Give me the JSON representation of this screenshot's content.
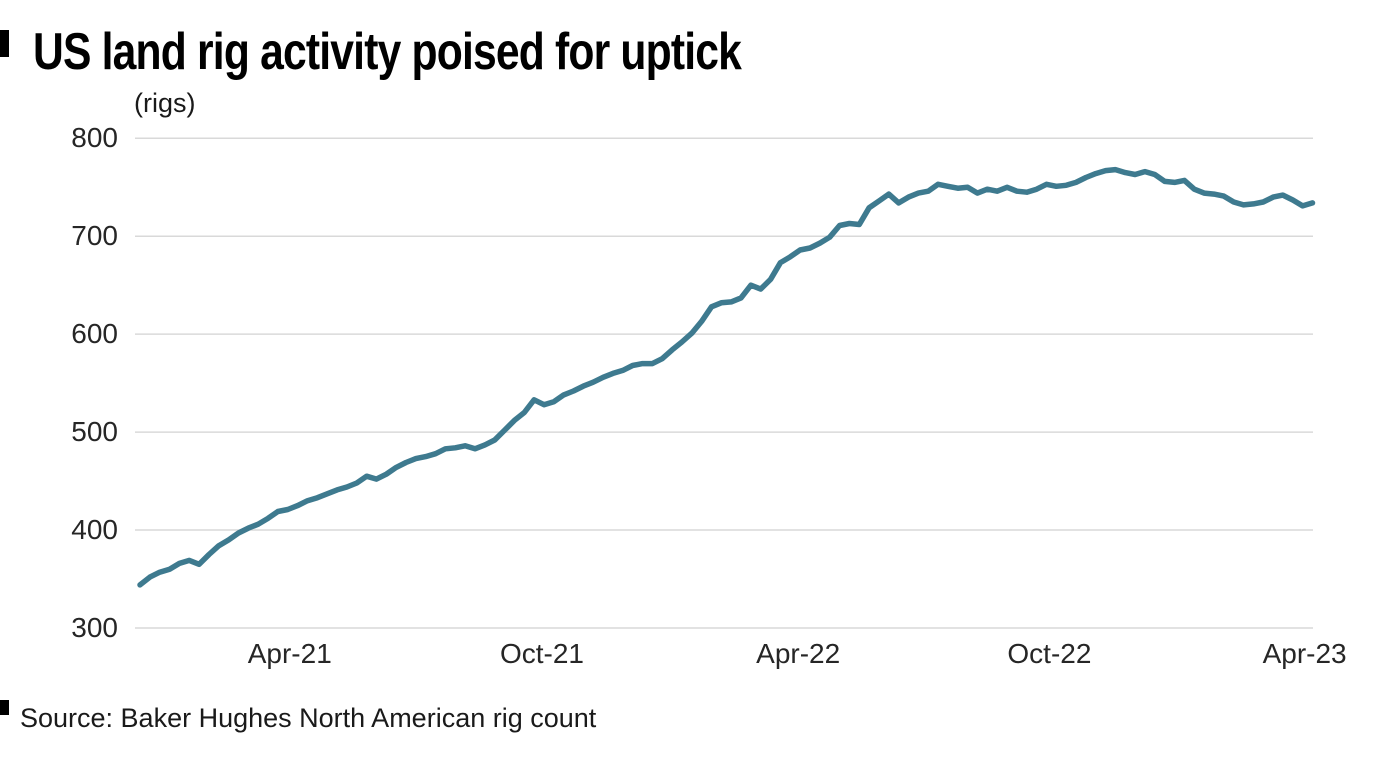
{
  "title": "US land rig activity poised for uptick",
  "units_label": "(rigs)",
  "source": "Source: Baker Hughes North American rig count",
  "colors": {
    "line": "#3e7a8f",
    "grid": "#d9d9d9",
    "title_text": "#000000",
    "axis_text": "#262626",
    "background": "#ffffff"
  },
  "chart_data": {
    "type": "line",
    "title": "US land rig activity poised for uptick",
    "ylabel": "(rigs)",
    "ylim": [
      300,
      800
    ],
    "yticks": [
      300,
      400,
      500,
      600,
      700,
      800
    ],
    "xticks": [
      {
        "label": "Apr-21",
        "week_index": 15.2
      },
      {
        "label": "Oct-21",
        "week_index": 40.8
      },
      {
        "label": "Apr-22",
        "week_index": 66.8
      },
      {
        "label": "Oct-22",
        "week_index": 92.3
      },
      {
        "label": "Apr-23",
        "week_index": 118.2
      }
    ],
    "frequency": "weekly",
    "grid": true,
    "legend": false,
    "series": [
      {
        "name": "US land rig count",
        "values": [
          344,
          352,
          357,
          360,
          366,
          369,
          365,
          375,
          384,
          390,
          397,
          402,
          406,
          412,
          419,
          421,
          425,
          430,
          433,
          437,
          441,
          444,
          448,
          455,
          452,
          457,
          464,
          469,
          473,
          475,
          478,
          483,
          484,
          486,
          483,
          487,
          492,
          502,
          512,
          520,
          533,
          528,
          531,
          538,
          542,
          547,
          551,
          556,
          560,
          563,
          568,
          570,
          570,
          575,
          584,
          592,
          601,
          613,
          628,
          632,
          633,
          637,
          650,
          646,
          656,
          673,
          679,
          686,
          688,
          693,
          699,
          711,
          713,
          712,
          729,
          736,
          743,
          734,
          740,
          744,
          746,
          753,
          751,
          749,
          750,
          744,
          748,
          746,
          750,
          746,
          745,
          748,
          753,
          751,
          752,
          755,
          760,
          764,
          767,
          768,
          765,
          763,
          766,
          763,
          756,
          755,
          757,
          748,
          744,
          743,
          741,
          735,
          732,
          733,
          735,
          740,
          742,
          737,
          731,
          734
        ]
      }
    ]
  }
}
